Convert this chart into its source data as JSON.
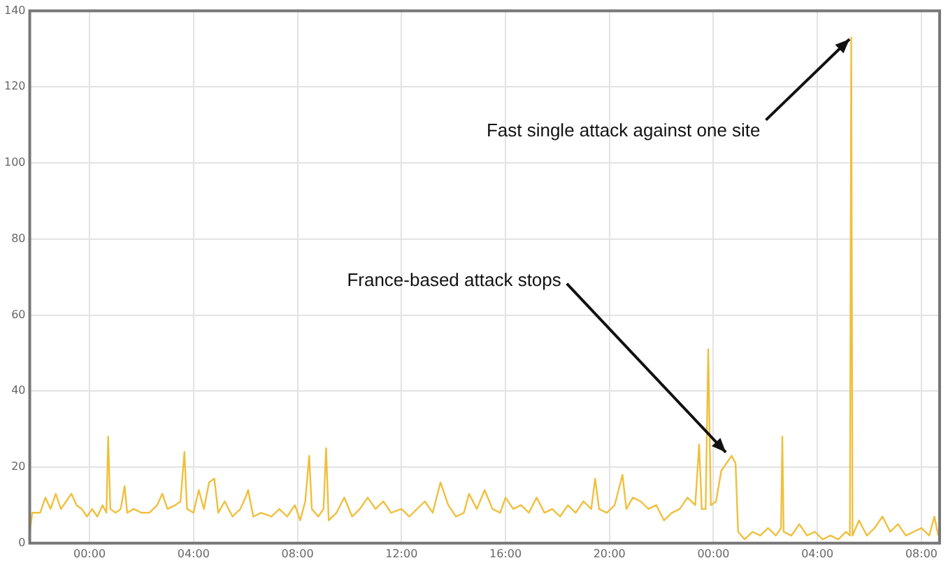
{
  "chart_data": {
    "type": "line",
    "x": [
      "--01-01T21:42",
      "--01-01T21:48",
      "--01-01T22:06",
      "--01-01T22:18",
      "--01-01T22:30",
      "--01-01T22:42",
      "--01-01T22:54",
      "--01-01T23:06",
      "--01-01T23:18",
      "--01-01T23:30",
      "--01-01T23:42",
      "--01-01T23:54",
      "--01-02T00:06",
      "--01-02T00:18",
      "--01-02T00:30",
      "--01-02T00:39",
      "--01-02T00:43",
      "--01-02T00:48",
      "--01-02T01:00",
      "--01-02T01:12",
      "--01-02T01:21",
      "--01-02T01:27",
      "--01-02T01:42",
      "--01-02T02:00",
      "--01-02T02:18",
      "--01-02T02:36",
      "--01-02T02:48",
      "--01-02T03:00",
      "--01-02T03:18",
      "--01-02T03:30",
      "--01-02T03:39",
      "--01-02T03:45",
      "--01-02T04:00",
      "--01-02T04:12",
      "--01-02T04:24",
      "--01-02T04:36",
      "--01-02T04:48",
      "--01-02T04:57",
      "--01-02T05:12",
      "--01-02T05:30",
      "--01-02T05:48",
      "--01-02T06:00",
      "--01-02T06:06",
      "--01-02T06:18",
      "--01-02T06:36",
      "--01-02T07:00",
      "--01-02T07:18",
      "--01-02T07:36",
      "--01-02T07:54",
      "--01-02T08:06",
      "--01-02T08:18",
      "--01-02T08:27",
      "--01-02T08:33",
      "--01-02T08:48",
      "--01-02T09:00",
      "--01-02T09:06",
      "--01-02T09:12",
      "--01-02T09:30",
      "--01-02T09:48",
      "--01-02T10:06",
      "--01-02T10:24",
      "--01-02T10:42",
      "--01-02T11:00",
      "--01-02T11:18",
      "--01-02T11:36",
      "--01-02T12:00",
      "--01-02T12:18",
      "--01-02T12:36",
      "--01-02T12:54",
      "--01-02T13:12",
      "--01-02T13:30",
      "--01-02T13:48",
      "--01-02T14:06",
      "--01-02T14:24",
      "--01-02T14:36",
      "--01-02T14:54",
      "--01-02T15:12",
      "--01-02T15:30",
      "--01-02T15:48",
      "--01-02T16:00",
      "--01-02T16:18",
      "--01-02T16:36",
      "--01-02T16:54",
      "--01-02T17:12",
      "--01-02T17:30",
      "--01-02T17:48",
      "--01-02T18:06",
      "--01-02T18:24",
      "--01-02T18:42",
      "--01-02T19:00",
      "--01-02T19:18",
      "--01-02T19:27",
      "--01-02T19:36",
      "--01-02T19:54",
      "--01-02T20:12",
      "--01-02T20:30",
      "--01-02T20:39",
      "--01-02T20:54",
      "--01-02T21:12",
      "--01-02T21:30",
      "--01-02T21:48",
      "--01-02T22:06",
      "--01-02T22:24",
      "--01-02T22:42",
      "--01-02T23:00",
      "--01-02T23:18",
      "--01-02T23:27",
      "--01-02T23:33",
      "--01-02T23:42",
      "--01-02T23:48",
      "--01-02T23:54",
      "--01-03T00:06",
      "--01-03T00:18",
      "--01-03T00:30",
      "--01-03T00:42",
      "--01-03T00:51",
      "--01-03T00:57",
      "--01-03T01:12",
      "--01-03T01:30",
      "--01-03T01:48",
      "--01-03T02:06",
      "--01-03T02:24",
      "--01-03T02:36",
      "--01-03T02:39",
      "--01-03T02:42",
      "--01-03T03:00",
      "--01-03T03:18",
      "--01-03T03:36",
      "--01-03T03:54",
      "--01-03T04:12",
      "--01-03T04:30",
      "--01-03T04:48",
      "--01-03T05:06",
      "--01-03T05:15",
      "--01-03T05:18",
      "--01-03T05:21",
      "--01-03T05:36",
      "--01-03T05:54",
      "--01-03T06:12",
      "--01-03T06:30",
      "--01-03T06:48",
      "--01-03T07:06",
      "--01-03T07:24",
      "--01-03T07:42",
      "--01-03T08:00",
      "--01-03T08:18",
      "--01-03T08:30",
      "--01-03T08:39"
    ],
    "series": [
      {
        "color": "#f0bf3c",
        "values": [
          3,
          8,
          8,
          12,
          9,
          13,
          9,
          11,
          13,
          10,
          9,
          7,
          9,
          7,
          10,
          8,
          28,
          9,
          8,
          9,
          15,
          8,
          9,
          8,
          8,
          10,
          13,
          9,
          10,
          11,
          24,
          9,
          8,
          14,
          9,
          16,
          17,
          8,
          11,
          7,
          9,
          12,
          14,
          7,
          8,
          7,
          9,
          7,
          10,
          6,
          11,
          23,
          9,
          7,
          9,
          25,
          6,
          8,
          12,
          7,
          9,
          12,
          9,
          11,
          8,
          9,
          7,
          9,
          11,
          8,
          16,
          10,
          7,
          8,
          13,
          9,
          14,
          9,
          8,
          12,
          9,
          10,
          8,
          12,
          8,
          9,
          7,
          10,
          8,
          11,
          9,
          17,
          9,
          8,
          10,
          18,
          9,
          12,
          11,
          9,
          10,
          6,
          8,
          9,
          12,
          10,
          26,
          9,
          9,
          51,
          10,
          11,
          19,
          21,
          23,
          21,
          3,
          1,
          3,
          2,
          4,
          2,
          4,
          28,
          3,
          2,
          5,
          2,
          3,
          1,
          2,
          1,
          3,
          2,
          133,
          2,
          6,
          2,
          4,
          7,
          3,
          5,
          2,
          3,
          4,
          2,
          7,
          2
        ]
      }
    ],
    "xlim": [
      "--01-01T21:42",
      "--01-03T08:42"
    ],
    "xticks": [
      {
        "value": "--01-02T00:00",
        "label": "00:00"
      },
      {
        "value": "--01-02T04:00",
        "label": "04:00"
      },
      {
        "value": "--01-02T08:00",
        "label": "08:00"
      },
      {
        "value": "--01-02T12:00",
        "label": "12:00"
      },
      {
        "value": "--01-02T16:00",
        "label": "16:00"
      },
      {
        "value": "--01-02T20:00",
        "label": "20:00"
      },
      {
        "value": "--01-03T00:00",
        "label": "00:00"
      },
      {
        "value": "--01-03T04:00",
        "label": "04:00"
      },
      {
        "value": "--01-03T08:00",
        "label": "08:00"
      }
    ],
    "ylim": [
      0,
      140
    ],
    "yticks": [
      0,
      20,
      40,
      60,
      80,
      100,
      120,
      140
    ],
    "grid": true,
    "legend": false,
    "marker": "none",
    "line_style": "solid",
    "annotations": [
      {
        "text": "France-based attack stops",
        "x": "--01-03T00:36",
        "y": 23
      },
      {
        "text": "Fast single attack against one site",
        "x": "--01-03T05:18",
        "y": 133
      }
    ]
  }
}
